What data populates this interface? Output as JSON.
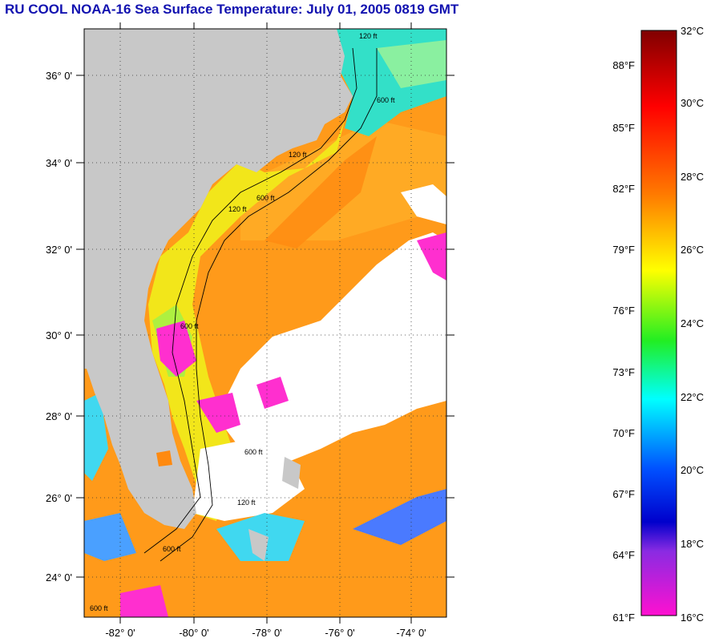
{
  "title": "RU COOL  NOAA-16  Sea Surface Temperature:  July 01, 2005 0819 GMT",
  "map": {
    "lat_labels": [
      "36° 0'",
      "34° 0'",
      "32° 0'",
      "30° 0'",
      "28° 0'",
      "26° 0'",
      "24° 0'"
    ],
    "lon_labels": [
      "-82° 0'",
      "-80° 0'",
      "-78° 0'",
      "-76° 0'",
      "-74° 0'"
    ],
    "isobath_labels": [
      "120 ft",
      "600 ft",
      "120 ft",
      "600 ft",
      "120 ft",
      "600 ft",
      "600 ft",
      "120 ft",
      "600 ft",
      "600 ft"
    ],
    "colors": {
      "land": "#c8c8c8",
      "cloud": "#ffffff",
      "warm_water": "#ff9a1a",
      "coastal_water": "#f2e61a",
      "cool_water": "#33e0c8",
      "cold_pixels": "#ff2fcf"
    }
  },
  "colorbar": {
    "celsius_labels": [
      "32°C",
      "30°C",
      "28°C",
      "26°C",
      "24°C",
      "22°C",
      "20°C",
      "18°C",
      "16°C"
    ],
    "fahrenheit_labels": [
      "88°F",
      "85°F",
      "82°F",
      "79°F",
      "76°F",
      "73°F",
      "70°F",
      "67°F",
      "64°F",
      "61°F"
    ],
    "stops": [
      "#800000",
      "#ff0000",
      "#ff7a00",
      "#ffff00",
      "#22ee22",
      "#00ffff",
      "#0050ff",
      "#0000cc",
      "#8a2be2",
      "#ff10d0"
    ]
  }
}
